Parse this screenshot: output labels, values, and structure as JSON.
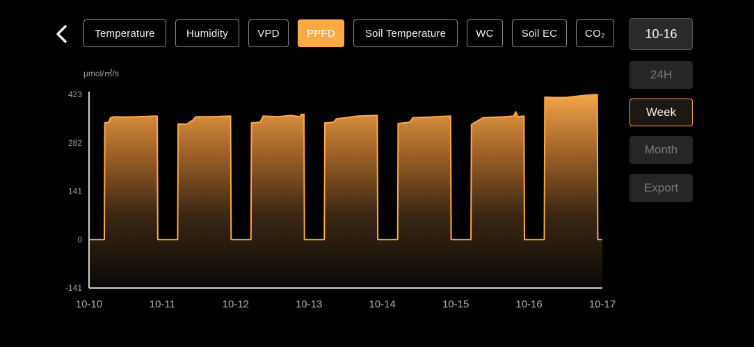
{
  "nav": {
    "back_icon": "chevron-left-icon"
  },
  "tabs": [
    {
      "id": "temperature",
      "label": "Temperature",
      "active": false
    },
    {
      "id": "humidity",
      "label": "Humidity",
      "active": false
    },
    {
      "id": "vpd",
      "label": "VPD",
      "active": false
    },
    {
      "id": "ppfd",
      "label": "PPFD",
      "active": true
    },
    {
      "id": "soil-temperature",
      "label": "Soil Temperature",
      "active": false
    },
    {
      "id": "wc",
      "label": "WC",
      "active": false
    },
    {
      "id": "soil-ec",
      "label": "Soil EC",
      "active": false
    },
    {
      "id": "co2",
      "label": "CO₂",
      "active": false
    }
  ],
  "side_panel": {
    "date": "10-16",
    "ranges": [
      {
        "id": "24h",
        "label": "24H",
        "active": false
      },
      {
        "id": "week",
        "label": "Week",
        "active": true
      },
      {
        "id": "month",
        "label": "Month",
        "active": false
      },
      {
        "id": "export",
        "label": "Export",
        "active": false
      }
    ]
  },
  "colors": {
    "accent": "#ffaa44",
    "background": "#000000",
    "inactive_text": "#7a7a7a"
  },
  "chart_data": {
    "type": "area",
    "unit_label": "μmol/㎡/s",
    "x_ticks": [
      "10-10",
      "10-11",
      "10-12",
      "10-13",
      "10-14",
      "10-15",
      "10-16",
      "10-17"
    ],
    "y_ticks": [
      423,
      282,
      141,
      0,
      -141
    ],
    "xlim": [
      "10-10",
      "10-17"
    ],
    "ylim": [
      -141,
      423
    ],
    "grid": false,
    "series": [
      {
        "color": "#ffaa44",
        "points": [
          [
            "10-10 00:00",
            0
          ],
          [
            "10-10 05:00",
            0
          ],
          [
            "10-10 05:10",
            340
          ],
          [
            "10-10 06:30",
            342
          ],
          [
            "10-10 07:00",
            355
          ],
          [
            "10-10 08:30",
            358
          ],
          [
            "10-10 12:00",
            357
          ],
          [
            "10-10 16:00",
            358
          ],
          [
            "10-10 22:20",
            360
          ],
          [
            "10-10 22:30",
            0
          ],
          [
            "10-11 05:00",
            0
          ],
          [
            "10-11 05:10",
            337
          ],
          [
            "10-11 08:00",
            336
          ],
          [
            "10-11 10:00",
            348
          ],
          [
            "10-11 11:00",
            358
          ],
          [
            "10-11 16:00",
            358
          ],
          [
            "10-11 22:20",
            360
          ],
          [
            "10-11 22:30",
            0
          ],
          [
            "10-12 05:00",
            0
          ],
          [
            "10-12 05:10",
            340
          ],
          [
            "10-12 08:00",
            342
          ],
          [
            "10-12 09:00",
            360
          ],
          [
            "10-12 14:00",
            358
          ],
          [
            "10-12 18:00",
            362
          ],
          [
            "10-12 21:00",
            358
          ],
          [
            "10-12 21:30",
            365
          ],
          [
            "10-12 22:20",
            365
          ],
          [
            "10-12 22:30",
            0
          ],
          [
            "10-13 05:00",
            0
          ],
          [
            "10-13 05:10",
            340
          ],
          [
            "10-13 08:00",
            342
          ],
          [
            "10-13 09:00",
            352
          ],
          [
            "10-13 12:00",
            355
          ],
          [
            "10-13 16:00",
            360
          ],
          [
            "10-13 22:20",
            362
          ],
          [
            "10-13 22:30",
            0
          ],
          [
            "10-14 05:00",
            0
          ],
          [
            "10-14 05:10",
            338
          ],
          [
            "10-14 09:00",
            342
          ],
          [
            "10-14 10:00",
            355
          ],
          [
            "10-14 16:00",
            357
          ],
          [
            "10-14 22:20",
            360
          ],
          [
            "10-14 22:30",
            0
          ],
          [
            "10-15 05:00",
            0
          ],
          [
            "10-15 05:10",
            335
          ],
          [
            "10-15 07:00",
            345
          ],
          [
            "10-15 09:00",
            355
          ],
          [
            "10-15 16:00",
            358
          ],
          [
            "10-15 19:00",
            360
          ],
          [
            "10-15 19:40",
            372
          ],
          [
            "10-15 20:20",
            358
          ],
          [
            "10-15 22:20",
            360
          ],
          [
            "10-15 22:30",
            0
          ],
          [
            "10-16 05:00",
            0
          ],
          [
            "10-16 05:10",
            415
          ],
          [
            "10-16 08:00",
            414
          ],
          [
            "10-16 12:00",
            414
          ],
          [
            "10-16 16:00",
            418
          ],
          [
            "10-16 18:00",
            420
          ],
          [
            "10-16 22:20",
            423
          ],
          [
            "10-16 22:30",
            0
          ],
          [
            "10-17 00:00",
            0
          ]
        ]
      }
    ]
  }
}
